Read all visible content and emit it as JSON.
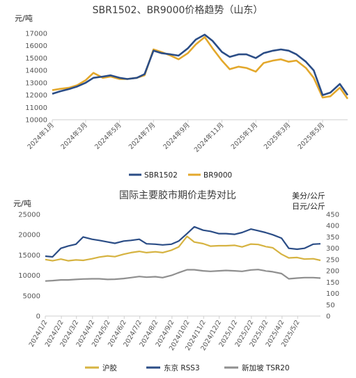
{
  "chart_data": [
    {
      "type": "line",
      "title": "SBR1502、BR9000价格趋势（山东）",
      "ylabel": "元/吨",
      "ylim": [
        10000,
        17000
      ],
      "yticks": [
        "10000",
        "11000",
        "12000",
        "13000",
        "14000",
        "15000",
        "16000",
        "17000"
      ],
      "grid": false,
      "legend_position": "bottom",
      "x": [
        "2024-01-01",
        "2024-01-15",
        "2024-02-01",
        "2024-02-15",
        "2024-03-01",
        "2024-03-15",
        "2024-04-01",
        "2024-04-15",
        "2024-05-01",
        "2024-05-15",
        "2024-06-01",
        "2024-06-15",
        "2024-07-01",
        "2024-07-15",
        "2024-08-01",
        "2024-08-15",
        "2024-09-01",
        "2024-09-15",
        "2024-10-01",
        "2024-10-15",
        "2024-11-01",
        "2024-11-15",
        "2024-12-01",
        "2024-12-15",
        "2025-01-01",
        "2025-01-15",
        "2025-02-01",
        "2025-02-15",
        "2025-03-01",
        "2025-03-15",
        "2025-04-01",
        "2025-04-15",
        "2025-05-01",
        "2025-05-15",
        "2025-06-01",
        "2025-06-15"
      ],
      "xticks": [
        {
          "date": "2024-01-01",
          "label": "2024年1月"
        },
        {
          "date": "2024-03-01",
          "label": "2024年3月"
        },
        {
          "date": "2024-05-01",
          "label": "2024年5月"
        },
        {
          "date": "2024-07-01",
          "label": "2024年7月"
        },
        {
          "date": "2024-09-01",
          "label": "2024年9月"
        },
        {
          "date": "2024-11-01",
          "label": "2024年11月"
        },
        {
          "date": "2025-01-01",
          "label": "2025年1月"
        },
        {
          "date": "2025-03-01",
          "label": "2025年3月"
        },
        {
          "date": "2025-05-01",
          "label": "2025年5月"
        }
      ],
      "series": [
        {
          "name": "SBR1502",
          "color": "#2b4d86",
          "values": [
            12100,
            12300,
            12500,
            12700,
            13000,
            13400,
            13500,
            13600,
            13400,
            13300,
            13400,
            13700,
            15600,
            15400,
            15300,
            15200,
            15800,
            16500,
            16900,
            16400,
            15500,
            15100,
            15300,
            15300,
            15000,
            15400,
            15600,
            15700,
            15600,
            15300,
            14700,
            14000,
            12000,
            12200,
            12900,
            12000
          ]
        },
        {
          "name": "BR9000",
          "color": "#e3a82c",
          "values": [
            12400,
            12500,
            12600,
            12800,
            13200,
            13800,
            13400,
            13500,
            13300,
            13300,
            13400,
            13600,
            15700,
            15500,
            15200,
            14900,
            15400,
            16100,
            16700,
            15800,
            14800,
            14100,
            14300,
            14200,
            13900,
            14600,
            14800,
            14900,
            14700,
            14800,
            14200,
            13400,
            11800,
            11900,
            12600,
            11700
          ]
        }
      ]
    },
    {
      "type": "line",
      "title": "国际主要胶市期价走势对比",
      "ylabel": "元/吨",
      "ylabel_right": [
        "美分/公斤",
        "日元/公斤"
      ],
      "ylim": [
        0,
        25000
      ],
      "ylim_right": [
        0,
        450
      ],
      "yticks": [
        "0",
        "5000",
        "10000",
        "15000",
        "20000",
        "25000"
      ],
      "yticks_right": [
        "0",
        "50",
        "100",
        "150",
        "200",
        "250",
        "300",
        "350",
        "400",
        "450"
      ],
      "grid": false,
      "legend_position": "bottom",
      "x": [
        "2024-01-02",
        "2024-01-16",
        "2024-02-01",
        "2024-02-15",
        "2024-03-01",
        "2024-03-15",
        "2024-04-01",
        "2024-04-15",
        "2024-05-01",
        "2024-05-15",
        "2024-06-01",
        "2024-06-15",
        "2024-07-01",
        "2024-07-15",
        "2024-08-01",
        "2024-08-15",
        "2024-09-01",
        "2024-09-15",
        "2024-10-01",
        "2024-10-15",
        "2024-11-01",
        "2024-11-15",
        "2024-12-01",
        "2024-12-15",
        "2025-01-01",
        "2025-01-15",
        "2025-02-01",
        "2025-02-15",
        "2025-03-01",
        "2025-03-15",
        "2025-04-01",
        "2025-04-15",
        "2025-05-01",
        "2025-05-15",
        "2025-06-01",
        "2025-06-15"
      ],
      "xticks": [
        {
          "date": "2024-01-02",
          "label": "2024/1/2"
        },
        {
          "date": "2024-02-02",
          "label": "2024/2/2"
        },
        {
          "date": "2024-03-02",
          "label": "2024/3/2"
        },
        {
          "date": "2024-04-02",
          "label": "2024/4/2"
        },
        {
          "date": "2024-05-02",
          "label": "2024/5/2"
        },
        {
          "date": "2024-06-02",
          "label": "2024/6/2"
        },
        {
          "date": "2024-07-02",
          "label": "2024/7/2"
        },
        {
          "date": "2024-08-02",
          "label": "2024/8/2"
        },
        {
          "date": "2024-09-02",
          "label": "2024/9/2"
        },
        {
          "date": "2024-10-02",
          "label": "2024/10/2"
        },
        {
          "date": "2024-11-02",
          "label": "2024/11/2"
        },
        {
          "date": "2024-12-02",
          "label": "2024/12/2"
        },
        {
          "date": "2025-01-02",
          "label": "2025/1/2"
        },
        {
          "date": "2025-02-02",
          "label": "2025/2/2"
        },
        {
          "date": "2025-03-02",
          "label": "2025/3/2"
        },
        {
          "date": "2025-04-02",
          "label": "2025/4/2"
        },
        {
          "date": "2025-05-02",
          "label": "2025/5/2"
        }
      ],
      "series": [
        {
          "name": "沪胶",
          "axis": "left",
          "color": "#d6b341",
          "values": [
            13900,
            13600,
            14000,
            13600,
            13800,
            13700,
            14100,
            14500,
            14800,
            14600,
            15200,
            15600,
            15900,
            15600,
            15800,
            15600,
            16200,
            17000,
            19600,
            18200,
            17800,
            17200,
            17300,
            17300,
            17400,
            17000,
            17700,
            17600,
            17100,
            16800,
            15200,
            14300,
            14400,
            14000,
            14100,
            13700
          ]
        },
        {
          "name": "东京 RSS3",
          "axis": "right",
          "color": "#2b4d86",
          "values": [
            265,
            262,
            300,
            310,
            318,
            350,
            340,
            335,
            328,
            322,
            332,
            335,
            340,
            320,
            318,
            315,
            318,
            332,
            365,
            395,
            380,
            375,
            365,
            365,
            362,
            370,
            385,
            378,
            370,
            360,
            345,
            300,
            296,
            300,
            318,
            320
          ]
        },
        {
          "name": "新加坡 TSR20",
          "axis": "right",
          "color": "#8f8f8f",
          "values": [
            155,
            157,
            160,
            160,
            162,
            164,
            165,
            165,
            162,
            163,
            166,
            170,
            175,
            172,
            174,
            170,
            180,
            192,
            205,
            205,
            200,
            198,
            200,
            202,
            200,
            198,
            204,
            206,
            200,
            196,
            188,
            165,
            168,
            170,
            170,
            168
          ]
        }
      ]
    }
  ]
}
